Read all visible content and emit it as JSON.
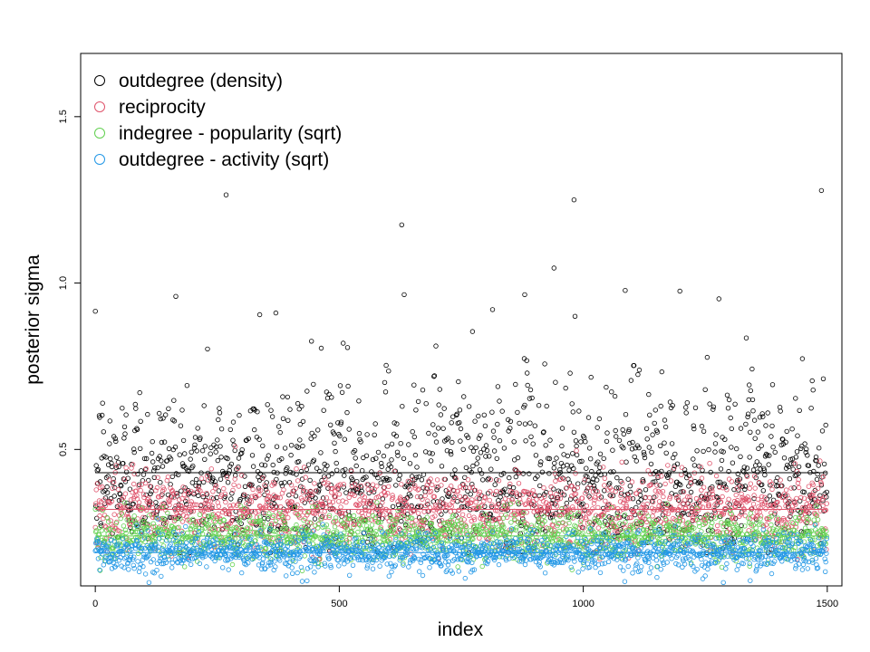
{
  "chart_data": {
    "type": "scatter",
    "title": "",
    "xlabel": "index",
    "ylabel": "posterior sigma",
    "xlim": [
      -30,
      1530
    ],
    "ylim": [
      0.09,
      1.69
    ],
    "x_ticks": [
      {
        "value": 0,
        "label": "0"
      },
      {
        "value": 500,
        "label": "500"
      },
      {
        "value": 1000,
        "label": "1000"
      },
      {
        "value": 1500,
        "label": "1500"
      }
    ],
    "y_ticks": [
      {
        "value": 0.5,
        "label": "0.5"
      },
      {
        "value": 1.0,
        "label": "1.0"
      },
      {
        "value": 1.5,
        "label": "1.5"
      }
    ],
    "grid": false,
    "legend_position": "top-left",
    "n_points_per_series": 1500,
    "series": [
      {
        "name": "outdegree (density)",
        "color": "#000000",
        "marker": "open-circle",
        "center": 0.43,
        "spread": 0.1,
        "approx_range": [
          0.19,
          1.28
        ],
        "notable_points": [
          {
            "x": 268,
            "y": 1.265
          },
          {
            "x": 628,
            "y": 1.175
          },
          {
            "x": 981,
            "y": 1.25
          },
          {
            "x": 1488,
            "y": 1.278
          },
          {
            "x": 940,
            "y": 1.045
          },
          {
            "x": 165,
            "y": 0.96
          },
          {
            "x": 880,
            "y": 0.965
          },
          {
            "x": 370,
            "y": 0.91
          },
          {
            "x": 337,
            "y": 0.905
          },
          {
            "x": 633,
            "y": 0.965
          },
          {
            "x": 983,
            "y": 0.9
          }
        ]
      },
      {
        "name": "reciprocity",
        "color": "#DF536B",
        "marker": "open-circle",
        "center": 0.32,
        "spread": 0.055,
        "approx_range": [
          0.17,
          0.56
        ]
      },
      {
        "name": "indegree - popularity (sqrt)",
        "color": "#61D04F",
        "marker": "open-circle",
        "center": 0.24,
        "spread": 0.035,
        "approx_range": [
          0.13,
          0.42
        ]
      },
      {
        "name": "outdegree - activity (sqrt)",
        "color": "#2297E6",
        "marker": "open-circle",
        "center": 0.19,
        "spread": 0.028,
        "approx_range": [
          0.1,
          0.3
        ]
      }
    ]
  }
}
